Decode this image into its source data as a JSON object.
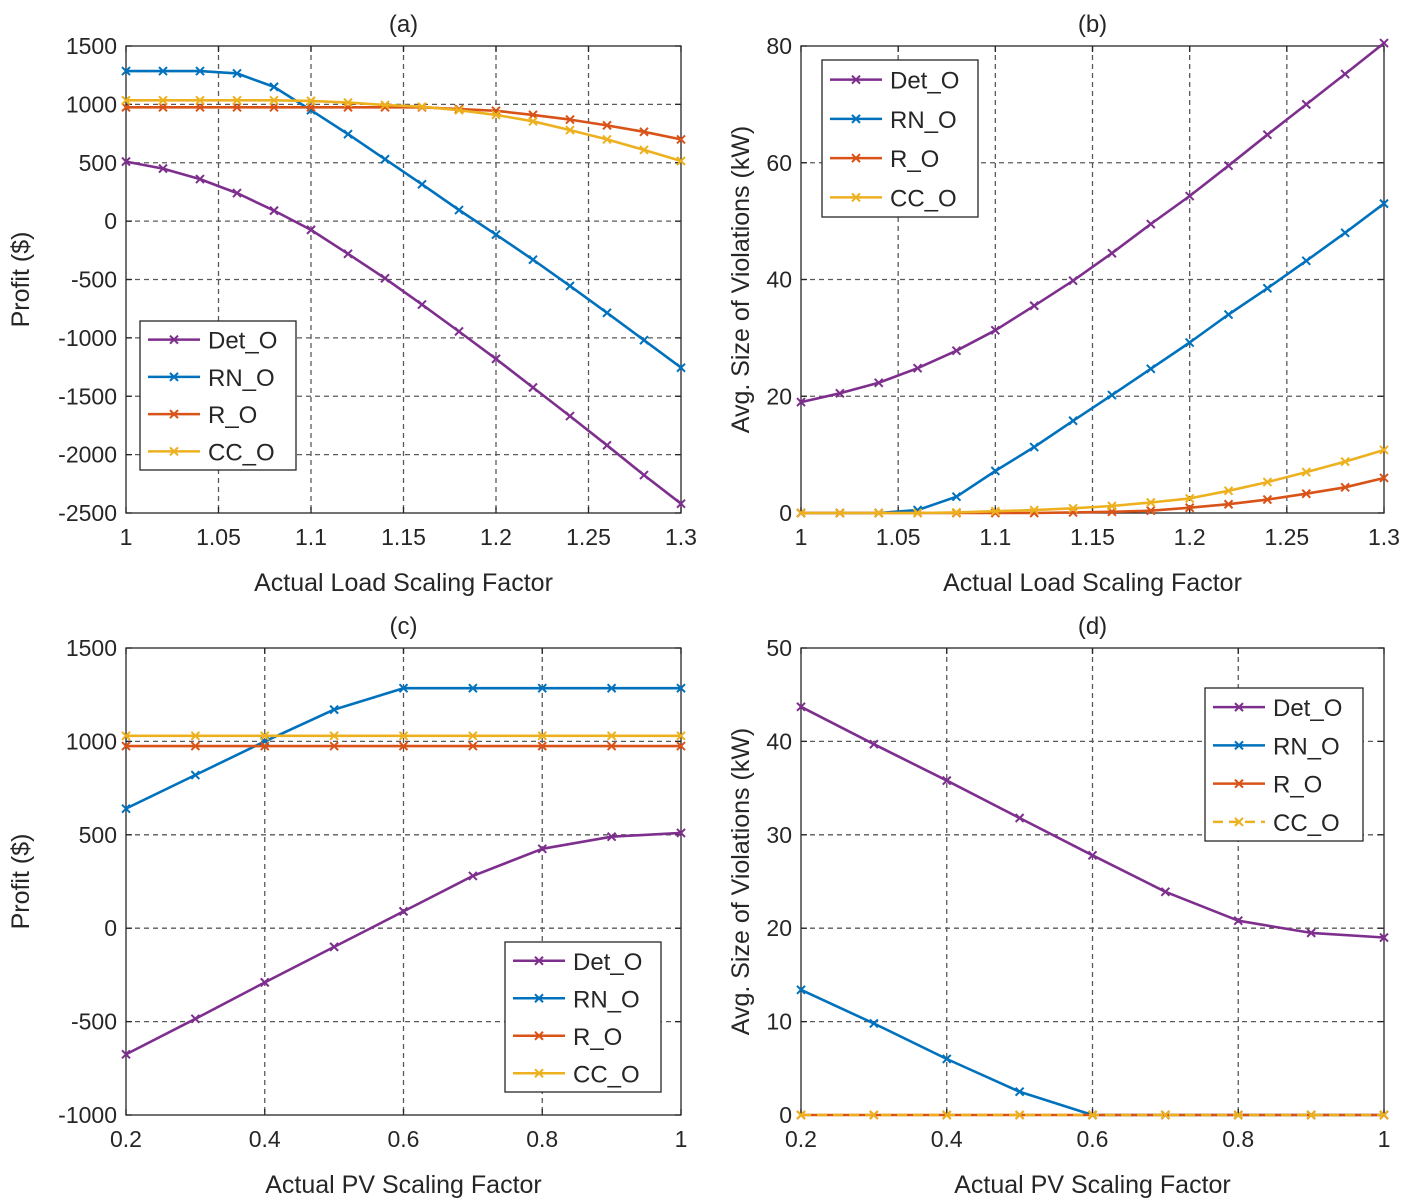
{
  "colors": {
    "Det_O": "#7E2F8E",
    "RN_O": "#0072BD",
    "R_O": "#D95319",
    "CC_O": "#EDB120",
    "grid": "#5a5a5a",
    "axis": "#262626"
  },
  "chart_data": [
    {
      "id": "a",
      "type": "line",
      "title": "(a)",
      "xlabel": "Actual Load Scaling Factor",
      "ylabel": "Profit ($)",
      "xlim": [
        1,
        1.3
      ],
      "ylim": [
        -2500,
        1500
      ],
      "xticks": [
        1,
        1.05,
        1.1,
        1.15,
        1.2,
        1.25,
        1.3
      ],
      "xtick_labels": [
        "1",
        "1.05",
        "1.1",
        "1.15",
        "1.2",
        "1.25",
        "1.3"
      ],
      "yticks": [
        -2500,
        -2000,
        -1500,
        -1000,
        -500,
        0,
        500,
        1000,
        1500
      ],
      "ytick_labels": [
        "-2500",
        "-2000",
        "-1500",
        "-1000",
        "-500",
        "0",
        "500",
        "1000",
        "1500"
      ],
      "grid": true,
      "legend_position": "bottom-left",
      "x": [
        1,
        1.02,
        1.04,
        1.06,
        1.08,
        1.1,
        1.12,
        1.14,
        1.16,
        1.18,
        1.2,
        1.22,
        1.24,
        1.26,
        1.28,
        1.3
      ],
      "series": [
        {
          "name": "Det_O",
          "values": [
            510,
            450,
            360,
            240,
            90,
            -75,
            -280,
            -490,
            -715,
            -945,
            -1180,
            -1425,
            -1670,
            -1920,
            -2175,
            -2420
          ]
        },
        {
          "name": "RN_O",
          "values": [
            1285,
            1285,
            1285,
            1265,
            1150,
            950,
            745,
            530,
            315,
            95,
            -115,
            -330,
            -555,
            -785,
            -1020,
            -1255
          ]
        },
        {
          "name": "R_O",
          "values": [
            975,
            975,
            975,
            975,
            975,
            975,
            975,
            975,
            975,
            960,
            945,
            910,
            870,
            820,
            765,
            700
          ]
        },
        {
          "name": "CC_O",
          "values": [
            1035,
            1035,
            1035,
            1035,
            1035,
            1030,
            1015,
            995,
            980,
            950,
            910,
            855,
            780,
            700,
            610,
            515
          ]
        }
      ]
    },
    {
      "id": "b",
      "type": "line",
      "title": "(b)",
      "xlabel": "Actual Load Scaling Factor",
      "ylabel": "Avg. Size of Violations (kW)",
      "xlim": [
        1,
        1.3
      ],
      "ylim": [
        0,
        80
      ],
      "xticks": [
        1,
        1.05,
        1.1,
        1.15,
        1.2,
        1.25,
        1.3
      ],
      "xtick_labels": [
        "1",
        "1.05",
        "1.1",
        "1.15",
        "1.2",
        "1.25",
        "1.3"
      ],
      "yticks": [
        0,
        20,
        40,
        60,
        80
      ],
      "ytick_labels": [
        "0",
        "20",
        "40",
        "60",
        "80"
      ],
      "grid": true,
      "legend_position": "top-left",
      "x": [
        1,
        1.02,
        1.04,
        1.06,
        1.08,
        1.1,
        1.12,
        1.14,
        1.16,
        1.18,
        1.2,
        1.22,
        1.24,
        1.26,
        1.28,
        1.3
      ],
      "series": [
        {
          "name": "Det_O",
          "values": [
            19,
            20.5,
            22.3,
            24.8,
            27.8,
            31.3,
            35.5,
            39.8,
            44.5,
            49.5,
            54.3,
            59.5,
            64.8,
            70,
            75.2,
            80.5
          ]
        },
        {
          "name": "RN_O",
          "values": [
            0,
            0,
            0,
            0.5,
            2.8,
            7.2,
            11.3,
            15.8,
            20.2,
            24.7,
            29.2,
            34,
            38.5,
            43.2,
            48,
            53
          ]
        },
        {
          "name": "R_O",
          "values": [
            0,
            0,
            0,
            0,
            0,
            0,
            0,
            0.1,
            0.2,
            0.4,
            0.9,
            1.5,
            2.3,
            3.3,
            4.4,
            6
          ]
        },
        {
          "name": "CC_O",
          "values": [
            0,
            0,
            0,
            0,
            0.1,
            0.3,
            0.5,
            0.8,
            1.2,
            1.8,
            2.5,
            3.8,
            5.3,
            7,
            8.8,
            10.8
          ]
        }
      ]
    },
    {
      "id": "c",
      "type": "line",
      "title": "(c)",
      "xlabel": "Actual PV Scaling Factor",
      "ylabel": "Profit ($)",
      "xlim": [
        0.2,
        1
      ],
      "ylim": [
        -1000,
        1500
      ],
      "xticks": [
        0.2,
        0.4,
        0.6,
        0.8,
        1
      ],
      "xtick_labels": [
        "0.2",
        "0.4",
        "0.6",
        "0.8",
        "1"
      ],
      "yticks": [
        -1000,
        -500,
        0,
        500,
        1000,
        1500
      ],
      "ytick_labels": [
        "-1000",
        "-500",
        "0",
        "500",
        "1000",
        "1500"
      ],
      "grid": true,
      "legend_position": "bottom-right",
      "x": [
        0.2,
        0.3,
        0.4,
        0.5,
        0.6,
        0.7,
        0.8,
        0.9,
        1
      ],
      "series": [
        {
          "name": "Det_O",
          "values": [
            -675,
            -485,
            -290,
            -100,
            90,
            280,
            425,
            490,
            510
          ]
        },
        {
          "name": "RN_O",
          "values": [
            640,
            820,
            1000,
            1170,
            1285,
            1285,
            1285,
            1285,
            1285
          ]
        },
        {
          "name": "R_O",
          "values": [
            975,
            975,
            975,
            975,
            975,
            975,
            975,
            975,
            975
          ]
        },
        {
          "name": "CC_O",
          "values": [
            1030,
            1030,
            1030,
            1030,
            1030,
            1030,
            1030,
            1030,
            1030
          ]
        }
      ]
    },
    {
      "id": "d",
      "type": "line",
      "title": "(d)",
      "xlabel": "Actual PV Scaling Factor",
      "ylabel": "Avg. Size of Violations (kW)",
      "xlim": [
        0.2,
        1
      ],
      "ylim": [
        0,
        50
      ],
      "xticks": [
        0.2,
        0.4,
        0.6,
        0.8,
        1
      ],
      "xtick_labels": [
        "0.2",
        "0.4",
        "0.6",
        "0.8",
        "1"
      ],
      "yticks": [
        0,
        10,
        20,
        30,
        40,
        50
      ],
      "ytick_labels": [
        "0",
        "10",
        "20",
        "30",
        "40",
        "50"
      ],
      "grid": true,
      "legend_position": "top-right",
      "x": [
        0.2,
        0.3,
        0.4,
        0.5,
        0.6,
        0.7,
        0.8,
        0.9,
        1
      ],
      "series": [
        {
          "name": "Det_O",
          "values": [
            43.7,
            39.7,
            35.8,
            31.8,
            27.8,
            23.9,
            20.8,
            19.5,
            19
          ]
        },
        {
          "name": "RN_O",
          "values": [
            13.4,
            9.8,
            6,
            2.5,
            0,
            0,
            0,
            0,
            0
          ]
        },
        {
          "name": "R_O",
          "values": [
            0,
            0,
            0,
            0,
            0,
            0,
            0,
            0,
            0
          ]
        },
        {
          "name": "CC_O",
          "values": [
            0,
            0,
            0,
            0,
            0,
            0,
            0,
            0,
            0
          ],
          "dashed": true
        }
      ]
    }
  ]
}
